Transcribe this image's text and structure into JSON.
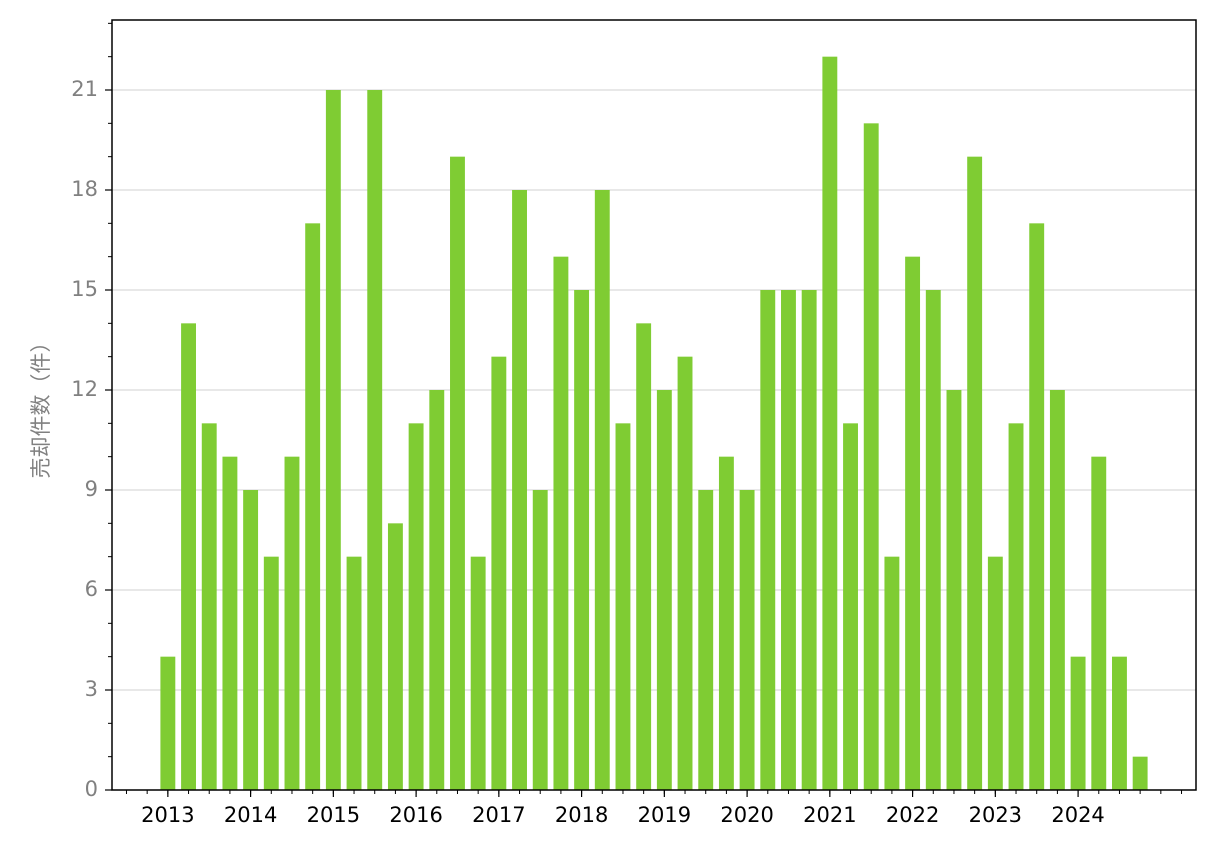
{
  "chart_data": {
    "type": "bar",
    "y_label": "売却件数（件）",
    "categories": [
      "2013",
      null,
      null,
      null,
      "2014",
      null,
      null,
      null,
      "2015",
      null,
      null,
      null,
      "2016",
      null,
      null,
      null,
      "2017",
      null,
      null,
      null,
      "2018",
      null,
      null,
      null,
      "2019",
      null,
      null,
      null,
      "2020",
      null,
      null,
      null,
      "2021",
      null,
      null,
      null,
      "2022",
      null,
      null,
      null,
      "2023",
      null,
      null,
      null,
      "2024",
      null,
      null,
      null
    ],
    "values": [
      4,
      14,
      11,
      10,
      9,
      7,
      10,
      17,
      21,
      7,
      21,
      8,
      11,
      12,
      19,
      7,
      13,
      18,
      9,
      16,
      15,
      18,
      11,
      14,
      12,
      13,
      9,
      10,
      9,
      15,
      15,
      15,
      22,
      11,
      20,
      7,
      16,
      15,
      12,
      19,
      7,
      11,
      17,
      12,
      4,
      10,
      4,
      1
    ],
    "color": "#7fcc33",
    "ylim": [
      0,
      23.1
    ],
    "yticks": [
      0,
      3,
      6,
      9,
      12,
      15,
      18,
      21
    ],
    "grid": true
  }
}
